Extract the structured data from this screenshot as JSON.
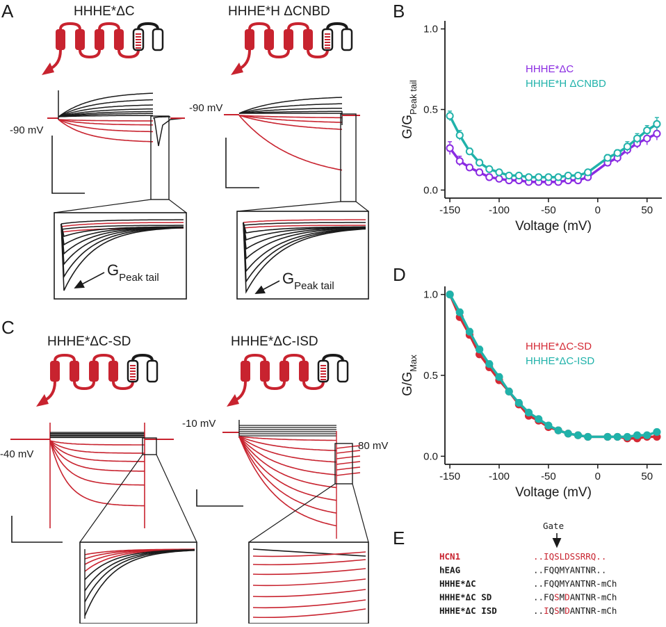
{
  "panels": {
    "A": {
      "letter": "A",
      "left_title": "HHHE*ΔC",
      "right_title": "HHHE*H ΔCNBD",
      "left_hold": "-90 mV",
      "right_hold": "-90 mV",
      "g_label_main": "G",
      "g_label_sub": "Peak tail"
    },
    "B": {
      "letter": "B",
      "legend": [
        {
          "name": "HHHE*ΔC",
          "color": "#8a2be2"
        },
        {
          "name": "HHHE*H ΔCNBD",
          "color": "#20b2aa"
        }
      ]
    },
    "C": {
      "letter": "C",
      "left_title": "HHHE*ΔC-SD",
      "right_title": "HHHE*ΔC-ISD",
      "left_hold": "-40 mV",
      "right_hold": "-10 mV",
      "right_tail": "-80 mV"
    },
    "D": {
      "letter": "D",
      "legend": [
        {
          "name": "HHHE*ΔC-SD",
          "color": "#d42a35"
        },
        {
          "name": "HHHE*ΔC-ISD",
          "color": "#20b2aa"
        }
      ]
    },
    "E": {
      "letter": "E",
      "gate_label": "Gate",
      "rows": [
        {
          "name": "HCN1",
          "seq_segments": [
            {
              "t": "..IQSLDSSRRQ..",
              "red": true
            }
          ],
          "name_red": true
        },
        {
          "name": "hEAG",
          "seq_segments": [
            {
              "t": "..FQQMYANTNR..",
              "red": false
            }
          ],
          "name_red": false
        },
        {
          "name": "HHHE*ΔC",
          "seq_segments": [
            {
              "t": "..FQQMYANTNR-mCh",
              "red": false
            }
          ],
          "name_red": false
        },
        {
          "name": "HHHE*ΔC SD",
          "seq_segments": [
            {
              "t": "..FQ",
              "red": false
            },
            {
              "t": "S",
              "red": true
            },
            {
              "t": "M",
              "red": false
            },
            {
              "t": "D",
              "red": true
            },
            {
              "t": "ANTNR-mCh",
              "red": false
            }
          ],
          "name_red": false
        },
        {
          "name": "HHHE*ΔC ISD",
          "seq_segments": [
            {
              "t": "..",
              "red": false
            },
            {
              "t": "I",
              "red": true
            },
            {
              "t": "Q",
              "red": false
            },
            {
              "t": "S",
              "red": true
            },
            {
              "t": "M",
              "red": false
            },
            {
              "t": "D",
              "red": true
            },
            {
              "t": "ANTNR-mCh",
              "red": false
            }
          ],
          "name_red": false
        }
      ]
    }
  },
  "chart_data": [
    {
      "type": "line",
      "panel": "B",
      "xlabel": "Voltage (mV)",
      "ylabel_main": "G/G",
      "ylabel_sub": "Peak tail",
      "xlim": [
        -155,
        65
      ],
      "ylim": [
        -0.05,
        1.05
      ],
      "xticks": [
        -150,
        -100,
        -50,
        0,
        50
      ],
      "xtick_labels": [
        "-150",
        "-100",
        "-50",
        "0",
        "50"
      ],
      "yticks": [
        0.0,
        0.5,
        1.0
      ],
      "ytick_labels": [
        "0.0",
        "0.5",
        "1.0"
      ],
      "x": [
        -150,
        -140,
        -130,
        -120,
        -110,
        -100,
        -90,
        -80,
        -70,
        -60,
        -50,
        -40,
        -30,
        -20,
        -10,
        10,
        20,
        30,
        40,
        50,
        60
      ],
      "series": [
        {
          "name": "HHHE*ΔC",
          "color": "#8a2be2",
          "marker": "open",
          "values": [
            0.26,
            0.18,
            0.14,
            0.11,
            0.08,
            0.07,
            0.06,
            0.06,
            0.05,
            0.05,
            0.05,
            0.05,
            0.06,
            0.06,
            0.08,
            0.17,
            0.2,
            0.25,
            0.29,
            0.32,
            0.35
          ],
          "err": [
            0.04,
            0.03,
            0.02,
            0.02,
            0.02,
            0.01,
            0.01,
            0.01,
            0.01,
            0.01,
            0.01,
            0.01,
            0.01,
            0.01,
            0.01,
            0.02,
            0.03,
            0.03,
            0.03,
            0.04,
            0.04
          ]
        },
        {
          "name": "HHHE*H ΔCNBD",
          "color": "#20b2aa",
          "marker": "open",
          "values": [
            0.46,
            0.34,
            0.24,
            0.17,
            0.13,
            0.11,
            0.09,
            0.09,
            0.08,
            0.08,
            0.08,
            0.08,
            0.09,
            0.09,
            0.11,
            0.2,
            0.23,
            0.27,
            0.32,
            0.37,
            0.41
          ],
          "err": [
            0.03,
            0.03,
            0.02,
            0.02,
            0.01,
            0.01,
            0.01,
            0.01,
            0.01,
            0.01,
            0.01,
            0.01,
            0.01,
            0.01,
            0.01,
            0.02,
            0.02,
            0.03,
            0.03,
            0.03,
            0.04
          ]
        }
      ]
    },
    {
      "type": "line",
      "panel": "D",
      "xlabel": "Voltage (mV)",
      "ylabel_main": "G/G",
      "ylabel_sub": "Max",
      "xlim": [
        -155,
        65
      ],
      "ylim": [
        -0.05,
        1.05
      ],
      "xticks": [
        -150,
        -100,
        -50,
        0,
        50
      ],
      "xtick_labels": [
        "-150",
        "-100",
        "-50",
        "0",
        "50"
      ],
      "yticks": [
        0.0,
        0.5,
        1.0
      ],
      "ytick_labels": [
        "0.0",
        "0.5",
        "1.0"
      ],
      "x": [
        -150,
        -140,
        -130,
        -120,
        -110,
        -100,
        -90,
        -80,
        -70,
        -60,
        -50,
        -40,
        -30,
        -20,
        -10,
        10,
        20,
        30,
        40,
        50,
        60
      ],
      "series": [
        {
          "name": "HHHE*ΔC-SD",
          "color": "#d42a35",
          "marker": "filled",
          "values": [
            1.0,
            0.86,
            0.75,
            0.63,
            0.55,
            0.47,
            0.4,
            0.32,
            0.25,
            0.22,
            0.18,
            0.16,
            0.14,
            0.13,
            0.12,
            0.12,
            0.12,
            0.11,
            0.11,
            0.12,
            0.12
          ],
          "err": [
            0.0,
            0.02,
            0.02,
            0.02,
            0.02,
            0.02,
            0.02,
            0.02,
            0.01,
            0.01,
            0.01,
            0.01,
            0.01,
            0.01,
            0.01,
            0.01,
            0.01,
            0.01,
            0.01,
            0.01,
            0.01
          ]
        },
        {
          "name": "HHHE*ΔC-ISD",
          "color": "#20b2aa",
          "marker": "filled",
          "values": [
            1.0,
            0.89,
            0.77,
            0.66,
            0.57,
            0.49,
            0.4,
            0.33,
            0.27,
            0.23,
            0.19,
            0.16,
            0.14,
            0.13,
            0.12,
            0.12,
            0.12,
            0.12,
            0.13,
            0.13,
            0.15
          ],
          "err": [
            0.0,
            0.02,
            0.02,
            0.02,
            0.02,
            0.02,
            0.02,
            0.02,
            0.01,
            0.01,
            0.01,
            0.01,
            0.01,
            0.01,
            0.01,
            0.01,
            0.01,
            0.01,
            0.01,
            0.01,
            0.01
          ]
        }
      ]
    }
  ]
}
